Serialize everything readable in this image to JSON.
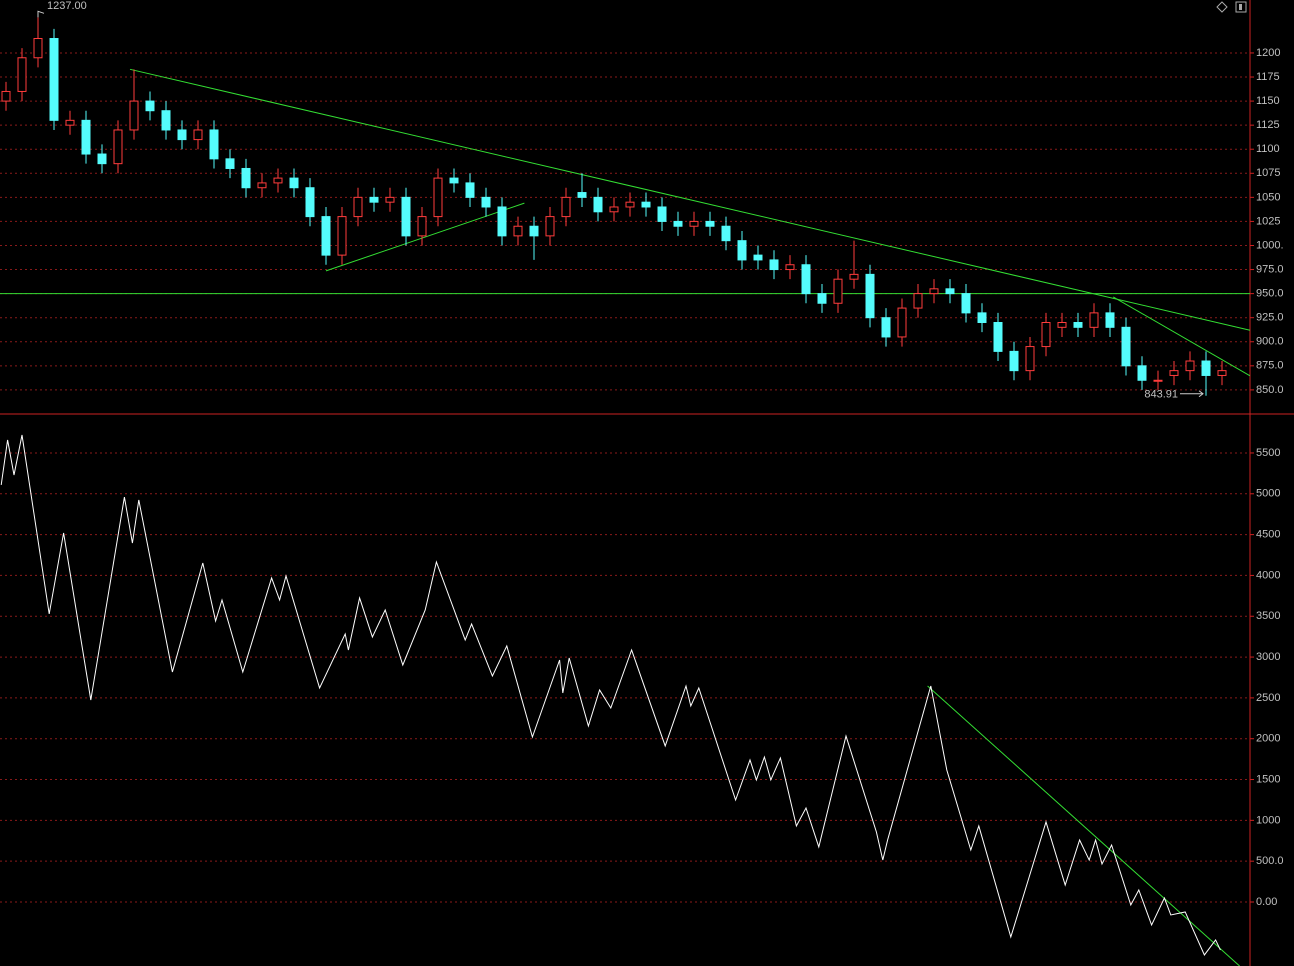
{
  "chart_data": [
    {
      "type": "candlestick",
      "up_color": "#ff3c3c",
      "down_color": "#54fcfc",
      "trend_color": "#33dd33",
      "grid": true,
      "xlim": [
        -0.375,
        77.75
      ],
      "ylim": [
        826,
        1255
      ],
      "yticks": [
        1200,
        1175,
        1150,
        1125,
        1100,
        1075,
        1050,
        1025,
        {
          "value": 1000,
          "label": "1000."
        },
        {
          "value": 975,
          "label": "975.0"
        },
        {
          "value": 950,
          "label": "950.0"
        },
        {
          "value": 925,
          "label": "925.0"
        },
        {
          "value": 900,
          "label": "900.0"
        },
        {
          "value": 875,
          "label": "875.0"
        },
        {
          "value": 850,
          "label": "850.0"
        }
      ],
      "open": [
        1150,
        1160,
        1195,
        1215,
        1125,
        1130,
        1095,
        1085,
        1120,
        1150,
        1140,
        1120,
        1110,
        1120,
        1090,
        1080,
        1060,
        1065,
        1070,
        1060,
        1030,
        990,
        1030,
        1050,
        1045,
        1050,
        1010,
        1030,
        1070,
        1065,
        1050,
        1040,
        1010,
        1020,
        1010,
        1030,
        1055,
        1050,
        1035,
        1040,
        1045,
        1040,
        1025,
        1020,
        1025,
        1020,
        1005,
        990,
        985,
        975,
        980,
        950,
        940,
        965,
        970,
        925,
        905,
        935,
        950,
        955,
        950,
        930,
        920,
        890,
        870,
        895,
        915,
        920,
        915,
        930,
        915,
        875,
        860,
        865,
        870,
        880,
        865
      ],
      "high": [
        1170,
        1205,
        1237,
        1225,
        1140,
        1140,
        1105,
        1130,
        1183,
        1160,
        1150,
        1130,
        1130,
        1130,
        1100,
        1090,
        1075,
        1080,
        1080,
        1070,
        1040,
        1040,
        1060,
        1060,
        1060,
        1060,
        1040,
        1080,
        1080,
        1075,
        1060,
        1050,
        1030,
        1030,
        1040,
        1060,
        1075,
        1060,
        1050,
        1055,
        1055,
        1050,
        1035,
        1035,
        1035,
        1030,
        1015,
        1000,
        995,
        990,
        990,
        960,
        975,
        1005,
        980,
        935,
        945,
        960,
        965,
        965,
        960,
        940,
        930,
        900,
        905,
        930,
        930,
        930,
        940,
        940,
        925,
        885,
        870,
        880,
        890,
        890,
        880
      ],
      "low": [
        1140,
        1150,
        1185,
        1120,
        1115,
        1085,
        1075,
        1075,
        1110,
        1130,
        1110,
        1100,
        1100,
        1080,
        1070,
        1050,
        1050,
        1055,
        1050,
        1020,
        980,
        980,
        1020,
        1035,
        1035,
        1000,
        1000,
        1020,
        1055,
        1040,
        1030,
        1000,
        1000,
        985,
        1000,
        1020,
        1040,
        1025,
        1025,
        1030,
        1030,
        1015,
        1010,
        1010,
        1010,
        995,
        975,
        975,
        965,
        965,
        940,
        930,
        930,
        955,
        915,
        895,
        895,
        925,
        940,
        940,
        920,
        910,
        880,
        860,
        860,
        885,
        905,
        905,
        905,
        905,
        865,
        850,
        850,
        855,
        860,
        843.91,
        855
      ],
      "close": [
        1160,
        1195,
        1215,
        1130,
        1130,
        1095,
        1085,
        1120,
        1150,
        1140,
        1120,
        1110,
        1120,
        1090,
        1080,
        1060,
        1065,
        1070,
        1060,
        1030,
        990,
        1030,
        1050,
        1045,
        1050,
        1010,
        1030,
        1070,
        1065,
        1050,
        1040,
        1010,
        1020,
        1010,
        1030,
        1050,
        1050,
        1035,
        1040,
        1045,
        1040,
        1025,
        1020,
        1025,
        1020,
        1005,
        985,
        985,
        975,
        980,
        950,
        940,
        965,
        970,
        925,
        905,
        935,
        950,
        955,
        950,
        930,
        920,
        890,
        870,
        895,
        920,
        920,
        915,
        930,
        915,
        875,
        860,
        860,
        870,
        880,
        865,
        870
      ],
      "high_label": {
        "value": 1237,
        "label": "1237.00"
      },
      "low_label": {
        "value": 843.91,
        "label": "843.91"
      },
      "trendlines": [
        {
          "x": [
            7.75,
            77.75
          ],
          "y": [
            1183,
            912
          ]
        },
        {
          "x": [
            20,
            32.4
          ],
          "y": [
            973.6,
            1044
          ]
        },
        {
          "x": [
            -0.375,
            77.75
          ],
          "y": [
            950,
            950
          ]
        },
        {
          "x": [
            69.2,
            77.75
          ],
          "y": [
            946.6,
            864.6
          ]
        }
      ]
    },
    {
      "type": "line",
      "color": "#ffffff",
      "trend_color": "#33dd33",
      "grid": true,
      "xlim": [
        -0.375,
        77.75
      ],
      "ylim": [
        -784,
        5965
      ],
      "yticks": [
        {
          "value": 0,
          "label": "0.00"
        },
        {
          "value": 500,
          "label": "500.0"
        },
        1000,
        1500,
        2000,
        2500,
        3000,
        3500,
        4000,
        4500,
        5000,
        5500
      ],
      "x": [
        -0.3,
        0.1,
        0.5,
        1,
        2.7,
        3.6,
        5.3,
        7.4,
        7.9,
        8.3,
        10.4,
        12.3,
        13.1,
        13.5,
        14.8,
        16.6,
        17.1,
        17.5,
        19.6,
        21.2,
        21.4,
        22.1,
        22.9,
        23.7,
        24.8,
        26.2,
        26.9,
        28.7,
        29.1,
        30.4,
        31.3,
        32.9,
        34.6,
        34.8,
        35.2,
        36.4,
        37.1,
        37.8,
        39.1,
        41.2,
        42.5,
        42.8,
        43.3,
        45.6,
        46.5,
        46.9,
        47.4,
        47.8,
        48.4,
        49.4,
        50,
        50.8,
        52.5,
        54.4,
        54.8,
        55.1,
        57.8,
        58.8,
        60.3,
        60.8,
        62.8,
        65,
        66.2,
        67.1,
        67.7,
        68.1,
        68.5,
        69.1,
        70.3,
        70.8,
        71.6,
        72.4,
        72.8,
        73.7,
        74.9,
        75.6,
        75.9
      ],
      "values": [
        5108,
        5659,
        5230,
        5720,
        3528,
        4520,
        2474,
        4960,
        4397,
        4924,
        2817,
        4152,
        3442,
        3699,
        2817,
        3969,
        3699,
        3993,
        2621,
        3283,
        3087,
        3724,
        3246,
        3577,
        2903,
        3577,
        4165,
        3209,
        3405,
        2768,
        3136,
        2021,
        2964,
        2560,
        2989,
        2156,
        2597,
        2376,
        3087,
        1911,
        2646,
        2401,
        2621,
        1249,
        1740,
        1495,
        1776,
        1495,
        1764,
        931,
        1151,
        674,
        2033,
        857,
        514,
        759,
        2646,
        1617,
        637,
        931,
        -429,
        980,
        208,
        759,
        514,
        759,
        465,
        698,
        -37,
        147,
        -282,
        49,
        -159,
        -122,
        -649,
        -465,
        -588
      ],
      "trendlines": [
        {
          "x": [
            57.6,
            77.1
          ],
          "y": [
            2646,
            -784
          ]
        }
      ]
    }
  ]
}
